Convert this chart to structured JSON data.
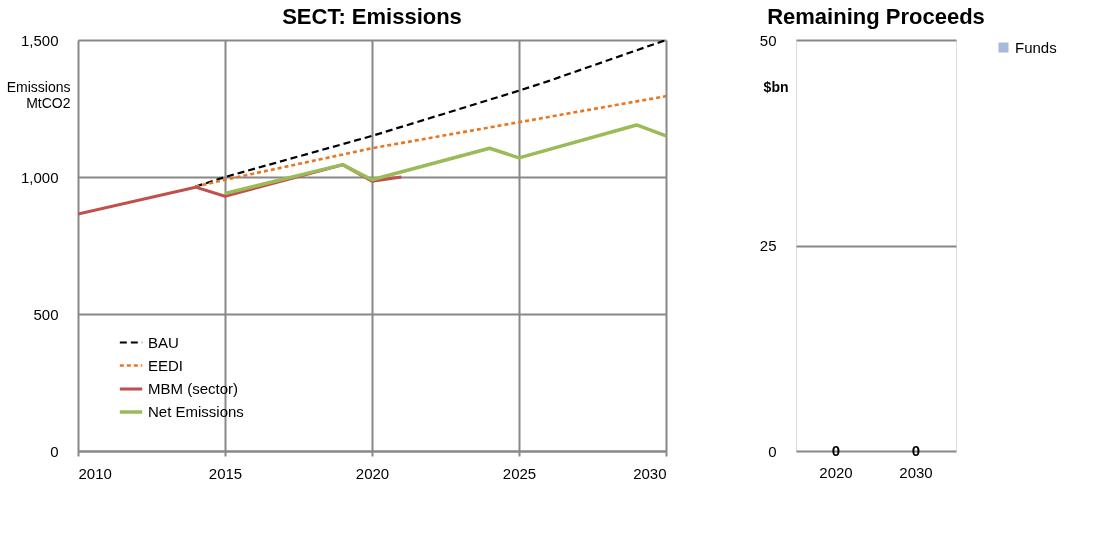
{
  "chart_data": [
    {
      "type": "line",
      "title": "SECT:  Emissions",
      "ylabel": "Emissions\nMtCO2",
      "xlim": [
        2010,
        2030
      ],
      "xticks": [
        2010,
        2015,
        2020,
        2025,
        2030
      ],
      "ylim": [
        0,
        1500
      ],
      "yticks": [
        0,
        {
          "value": 500,
          "label": "500"
        },
        {
          "value": 1000,
          "label": "1,000"
        },
        {
          "value": 1500,
          "label": "1,500"
        }
      ],
      "grid": true,
      "legend": "bottom left",
      "series": [
        {
          "name": "BAU",
          "color": "#000000",
          "line_style": "dashed",
          "x": [
            2014,
            2015,
            2020,
            2025,
            2026,
            2030
          ],
          "values": [
            965,
            1000,
            1150,
            1315,
            1350,
            1500
          ]
        },
        {
          "name": "EEDI",
          "color": "#e87722",
          "line_style": "dotted",
          "x": [
            2014,
            2015,
            2020,
            2025,
            2030
          ],
          "values": [
            965,
            990,
            1105,
            1200,
            1295
          ]
        },
        {
          "name": "MBM (sector)",
          "color": "#c0504d",
          "line_style": "solid",
          "x": [
            2010,
            2014,
            2015,
            2019,
            2020,
            2021
          ],
          "values": [
            865,
            963,
            930,
            1045,
            985,
            1000
          ]
        },
        {
          "name": "Net Emissions",
          "color": "#9bbb59",
          "line_style": "solid",
          "x": [
            2015,
            2019,
            2020,
            2024,
            2025,
            2029,
            2030
          ],
          "values": [
            940,
            1045,
            990,
            1105,
            1070,
            1190,
            1150
          ]
        }
      ]
    },
    {
      "type": "bar",
      "title": "Remaining Proceeds",
      "ylabel": "$bn",
      "categories": [
        "2020",
        "2030"
      ],
      "ylim": [
        0,
        50
      ],
      "yticks": [
        0,
        25,
        50
      ],
      "grid": "y",
      "legend": "right",
      "data_labels": true,
      "series": [
        {
          "name": "Funds",
          "color": "#a6b9d9",
          "values": [
            0,
            0
          ]
        }
      ]
    }
  ]
}
